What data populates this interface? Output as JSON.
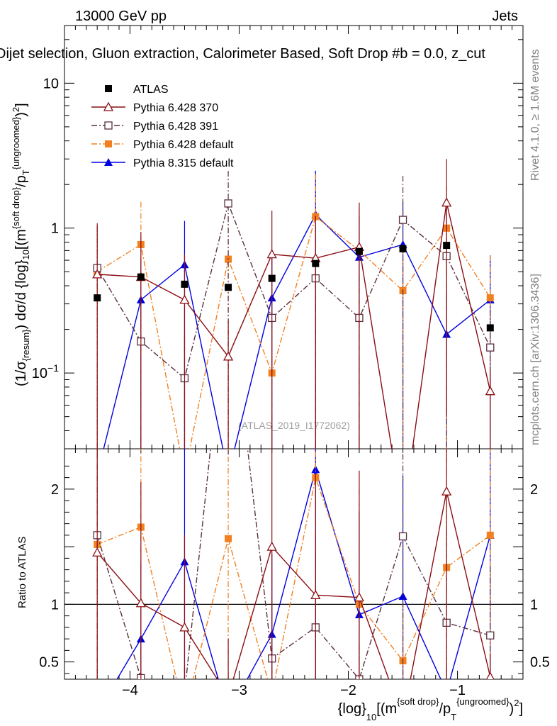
{
  "header": {
    "left": "13000 GeV pp",
    "right": "Jets",
    "plot_title": "Dijet selection, Gluon extraction, Calorimeter Based, Soft Drop #b = 0.0, z_cut"
  },
  "side_labels": {
    "rivet": "Rivet 4.1.0, ≥ 1.6M events",
    "mcplots": "mcplots.cern.ch [arXiv:1306.3436]"
  },
  "watermark": "(ATLAS_2019_I1772062)",
  "chart_data": [
    {
      "type": "line",
      "panel": "main",
      "title": "Dijet selection, Gluon extraction, Calorimeter Based, Soft Drop #b = 0.0, z_cut",
      "ylabel": "(1/σ_resum) dσ/d {log}_10[(m^{soft drop}/p_T^{ungroomed})^2]",
      "yscale": "log",
      "xlim": [
        -4.6,
        -0.4
      ],
      "ylim": [
        0.03,
        25
      ],
      "y_ticks": [
        {
          "v": 0.1,
          "label": "10^-1"
        },
        {
          "v": 1,
          "label": "1"
        },
        {
          "v": 10,
          "label": "10"
        }
      ],
      "x": [
        -4.3,
        -3.9,
        -3.5,
        -3.1,
        -2.7,
        -2.3,
        -1.9,
        -1.5,
        -1.1,
        -0.7
      ],
      "series": [
        {
          "name": "ATLAS",
          "color": "#000000",
          "marker": "square-filled",
          "line": "none",
          "values": [
            0.33,
            0.46,
            0.41,
            0.39,
            0.45,
            0.57,
            0.69,
            0.72,
            0.76,
            0.205
          ],
          "err_hi": [
            0,
            0,
            0,
            0,
            0,
            0,
            0,
            0,
            0,
            0
          ],
          "err_lo": [
            0,
            0,
            0,
            0,
            0,
            0,
            0,
            0,
            0,
            0
          ]
        },
        {
          "name": "Pythia 6.428 370",
          "color": "#8b0e13",
          "marker": "triangle-open",
          "line": "solid",
          "values": [
            0.48,
            0.46,
            0.32,
            0.13,
            0.66,
            0.62,
            0.74,
            0.01,
            1.5,
            0.075
          ],
          "err_hi": [
            0.6,
            0.48,
            0.34,
            0.1,
            0.66,
            0.6,
            0.76,
            0.001,
            1.5,
            0.03
          ],
          "err_lo": [
            0.46,
            0.44,
            0.31,
            0.12,
            0.64,
            0.6,
            0.72,
            0.009,
            1.45,
            0.07
          ]
        },
        {
          "name": "Pythia 6.428 391",
          "color": "#5a3040",
          "marker": "square-open",
          "line": "dashdot",
          "values": [
            0.53,
            0.165,
            0.092,
            1.48,
            0.24,
            0.45,
            0.24,
            1.14,
            0.64,
            0.15
          ],
          "err_hi": [
            0.5,
            0.15,
            0.09,
            1.0,
            0.22,
            0.4,
            0.22,
            1.15,
            0.6,
            0.12
          ],
          "err_lo": [
            0.51,
            0.16,
            0.09,
            1.45,
            0.23,
            0.44,
            0.23,
            1.12,
            0.62,
            0.14
          ]
        },
        {
          "name": "Pythia 6.428 default",
          "color": "#f28020",
          "marker": "square-filled",
          "line": "dashdot",
          "values": [
            0.5,
            0.77,
            0.02,
            0.61,
            0.1,
            1.2,
            0.7,
            0.37,
            1.0,
            0.33
          ],
          "err_hi": [
            0.45,
            0.75,
            0.01,
            0.6,
            0.1,
            1.15,
            0.68,
            0.35,
            0.95,
            0.32
          ],
          "err_lo": [
            0.49,
            0.75,
            0.019,
            0.6,
            0.09,
            1.18,
            0.69,
            0.36,
            0.98,
            0.32
          ]
        },
        {
          "name": "Pythia 8.315 default",
          "color": "#0000e0",
          "marker": "triangle-filled",
          "line": "solid",
          "values": [
            0.02,
            0.32,
            0.56,
            0.02,
            0.33,
            1.24,
            0.63,
            0.77,
            0.185,
            0.32
          ],
          "err_hi": [
            0.01,
            0.3,
            0.56,
            0.01,
            0.32,
            1.25,
            0.6,
            0.75,
            0.18,
            0.33
          ],
          "err_lo": [
            0.019,
            0.31,
            0.55,
            0.019,
            0.32,
            1.22,
            0.62,
            0.76,
            0.18,
            0.31
          ]
        }
      ]
    },
    {
      "type": "line",
      "panel": "ratio",
      "ylabel": "Ratio to ATLAS",
      "xlabel": "{log}_10[(m^{soft drop}/p_T^{ungroomed})^2]",
      "xlim": [
        -4.6,
        -0.4
      ],
      "ylim": [
        0.35,
        2.35
      ],
      "x_ticks": [
        {
          "v": -4,
          "label": "−4"
        },
        {
          "v": -3,
          "label": "−3"
        },
        {
          "v": -2,
          "label": "−2"
        },
        {
          "v": -1,
          "label": "−1"
        }
      ],
      "y_ticks": [
        {
          "v": 0.5,
          "label": "0.5"
        },
        {
          "v": 1,
          "label": "1"
        },
        {
          "v": 2,
          "label": "2"
        }
      ],
      "reference": 1,
      "x": [
        -4.3,
        -3.9,
        -3.5,
        -3.1,
        -2.7,
        -2.3,
        -1.9,
        -1.5,
        -1.1,
        -0.7
      ],
      "series": [
        {
          "name": "Pythia 6.428 370",
          "color": "#8b0e13",
          "marker": "triangle-open",
          "line": "solid",
          "values": [
            1.45,
            1.01,
            0.8,
            0.2,
            1.5,
            1.08,
            1.06,
            0.01,
            1.98,
            0.37
          ],
          "err_hi": [
            1.8,
            1.05,
            0.8,
            0.5,
            1.5,
            1.05,
            1.1,
            0.01,
            2.0,
            0.2
          ],
          "err_lo": [
            1.4,
            0.98,
            0.78,
            0.18,
            1.48,
            1.05,
            1.04,
            0.01,
            1.95,
            0.35
          ]
        },
        {
          "name": "Pythia 6.428 391",
          "color": "#5a3040",
          "marker": "square-open",
          "line": "dashdot",
          "values": [
            1.6,
            0.36,
            0.23,
            3.8,
            0.53,
            0.8,
            0.35,
            1.59,
            0.84,
            0.73
          ],
          "err_hi": [
            1.5,
            0.35,
            0.22,
            1.0,
            0.5,
            0.75,
            0.3,
            1.6,
            0.8,
            0.6
          ],
          "err_lo": [
            1.55,
            0.34,
            0.21,
            1.5,
            0.5,
            0.78,
            0.33,
            1.55,
            0.82,
            0.7
          ]
        },
        {
          "name": "Pythia 6.428 default",
          "color": "#f28020",
          "marker": "square-filled",
          "line": "dashdot",
          "values": [
            1.52,
            1.67,
            0.05,
            1.57,
            0.22,
            2.1,
            1.0,
            0.51,
            1.32,
            1.6
          ],
          "err_hi": [
            1.4,
            1.6,
            0.05,
            1.5,
            0.2,
            2.0,
            1.0,
            0.5,
            1.25,
            1.55
          ],
          "err_lo": [
            1.5,
            1.65,
            0.05,
            1.55,
            0.21,
            2.05,
            1.0,
            0.5,
            1.3,
            1.58
          ]
        },
        {
          "name": "Pythia 8.315 default",
          "color": "#0000e0",
          "marker": "triangle-filled",
          "line": "solid",
          "values": [
            0.06,
            0.7,
            1.37,
            0.05,
            0.74,
            2.17,
            0.91,
            1.07,
            0.24,
            1.6
          ],
          "err_hi": [
            0.05,
            0.65,
            1.36,
            0.05,
            0.7,
            2.2,
            0.9,
            1.05,
            0.24,
            1.6
          ],
          "err_lo": [
            0.05,
            0.68,
            1.35,
            0.05,
            0.72,
            2.15,
            0.89,
            1.06,
            0.24,
            1.58
          ]
        }
      ]
    }
  ]
}
